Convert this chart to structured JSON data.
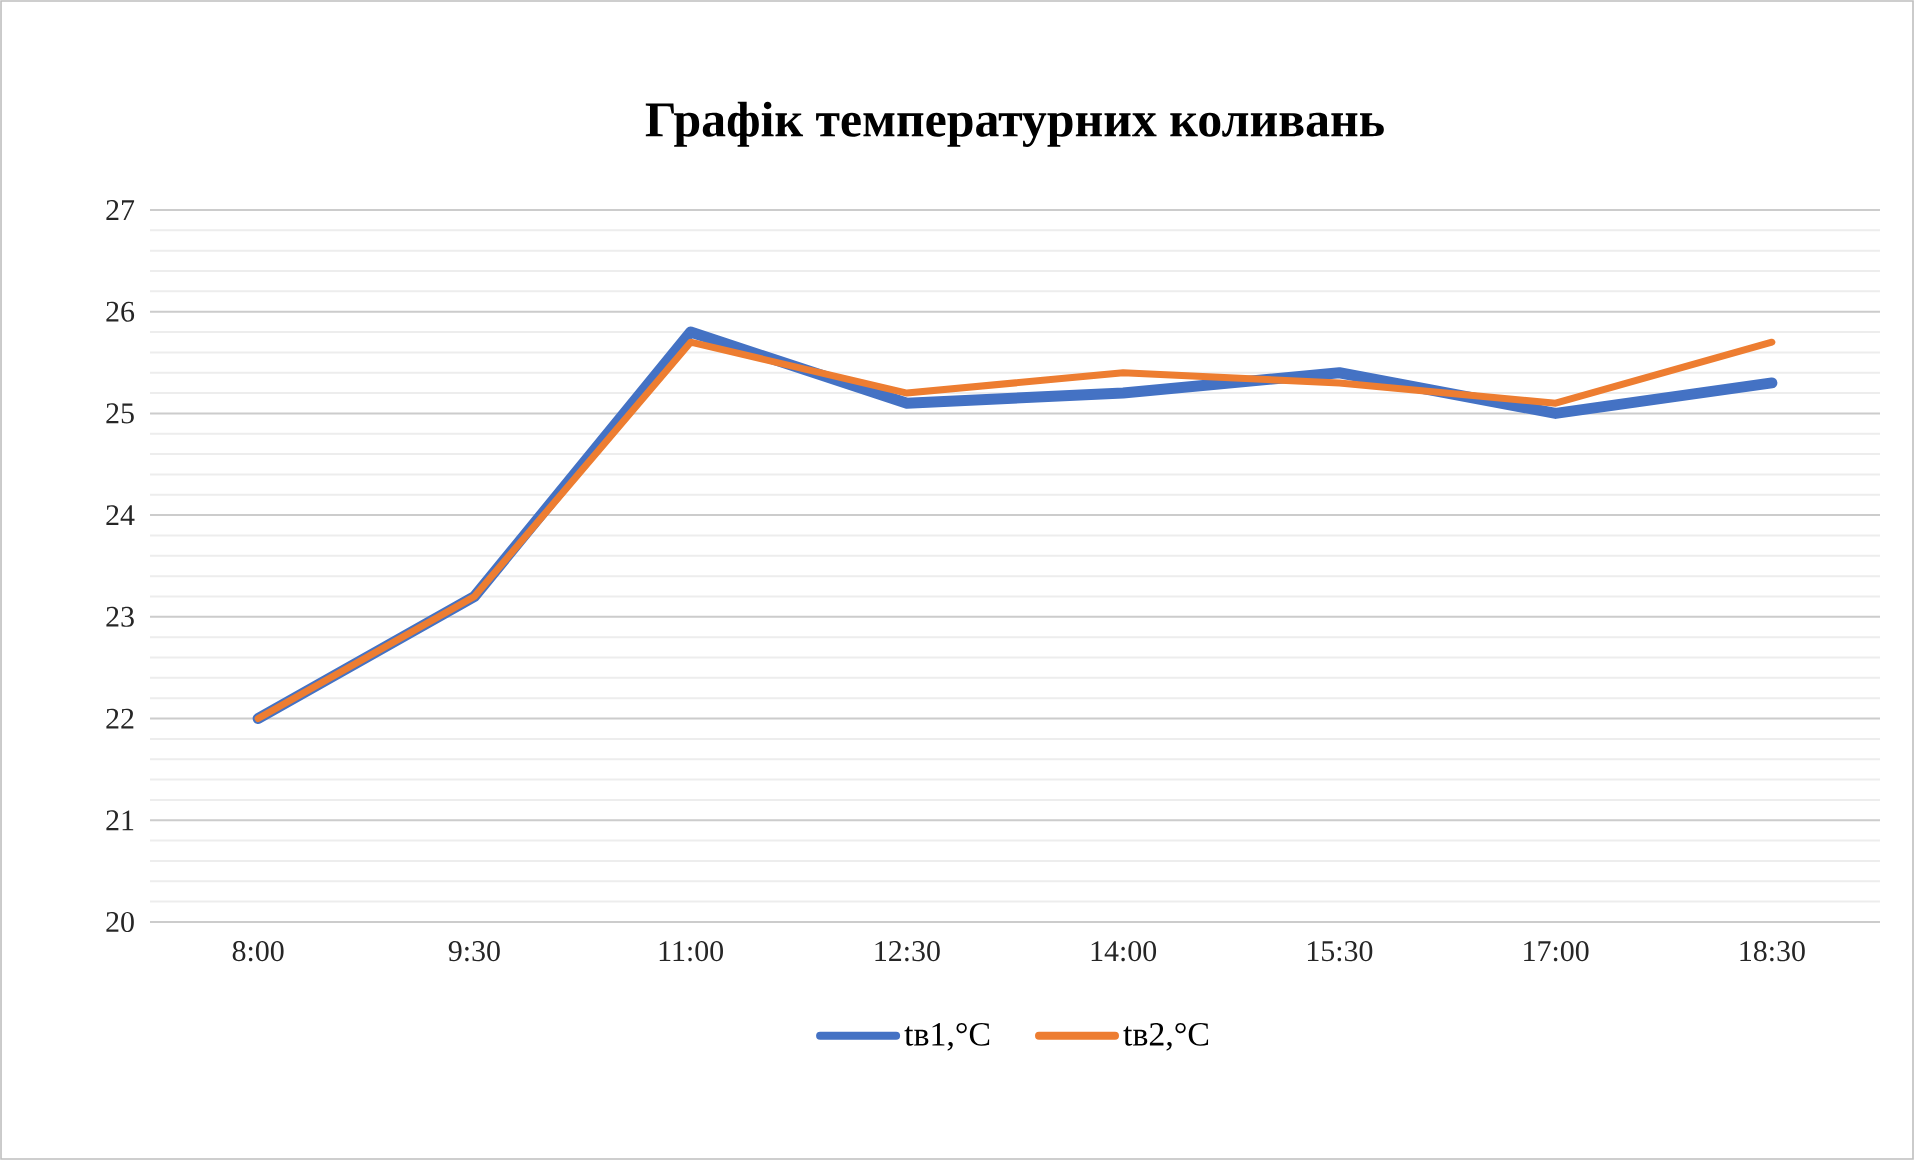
{
  "chart_data": {
    "type": "line",
    "title": "Графік температурних коливань",
    "categories": [
      "8:00",
      "9:30",
      "11:00",
      "12:30",
      "14:00",
      "15:30",
      "17:00",
      "18:30"
    ],
    "series": [
      {
        "name": "tв1,°C",
        "color": "#4472c4",
        "values": [
          22,
          23.2,
          25.8,
          25.1,
          25.2,
          25.4,
          25.0,
          25.3
        ]
      },
      {
        "name": "tв2,°C",
        "color": "#ed7d31",
        "values": [
          22,
          23.2,
          25.7,
          25.2,
          25.4,
          25.3,
          25.1,
          25.7
        ]
      }
    ],
    "ylim": [
      20,
      27
    ],
    "yticks": [
      20,
      21,
      22,
      23,
      24,
      25,
      26,
      27
    ],
    "grid": "y",
    "legend": "bottom",
    "marker": "none",
    "line_style": "solid"
  }
}
